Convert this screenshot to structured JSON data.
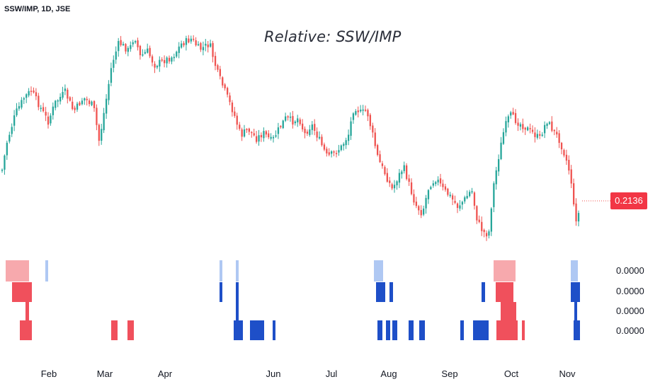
{
  "header": {
    "symbol": "SSW/IMP, 1D, JSE"
  },
  "chart_data": {
    "type": "candlestick",
    "title": "Relative: SSW/IMP",
    "last_value": "0.2136",
    "up_color": "#26a69a",
    "down_color": "#ef5350",
    "x_labels": [
      "Feb",
      "Mar",
      "Apr",
      "Jun",
      "Jul",
      "Aug",
      "Sep",
      "Oct",
      "Nov"
    ],
    "oscillator": {
      "values": [
        "0.0000",
        "0.0000",
        "0.0000",
        "0.0000"
      ],
      "colors": {
        "light_red": "#f7a9ad",
        "red": "#f0505c",
        "light_blue": "#afc8f3",
        "blue": "#1e4fc8"
      }
    }
  }
}
